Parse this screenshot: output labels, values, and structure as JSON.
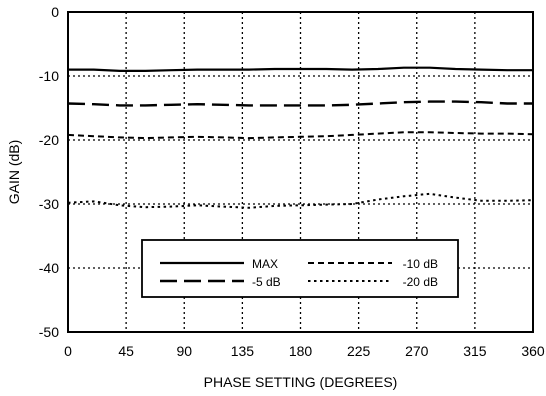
{
  "chart_data": {
    "type": "line",
    "xlabel": "PHASE SETTING (DEGREES)",
    "ylabel": "GAIN (dB)",
    "xlim": [
      0,
      360
    ],
    "ylim": [
      -50,
      0
    ],
    "xticks": [
      0,
      45,
      90,
      135,
      180,
      225,
      270,
      315,
      360
    ],
    "yticks": [
      0,
      -10,
      -20,
      -30,
      -40,
      -50
    ],
    "xtick_labels": [
      "0",
      "45",
      "90",
      "135",
      "180",
      "225",
      "270",
      "315",
      "360"
    ],
    "ytick_labels": [
      "0",
      "-10",
      "-20",
      "-30",
      "-40",
      "-50"
    ],
    "grid": "dotted",
    "legend_position": "lower-center",
    "series": [
      {
        "name": "MAX",
        "style": "solid",
        "x": [
          0,
          20,
          40,
          60,
          80,
          100,
          120,
          140,
          160,
          180,
          200,
          220,
          240,
          260,
          280,
          300,
          320,
          340,
          360
        ],
        "y": [
          -9.0,
          -9.0,
          -9.2,
          -9.2,
          -9.1,
          -9.0,
          -9.0,
          -9.0,
          -8.9,
          -8.9,
          -8.9,
          -9.0,
          -8.9,
          -8.7,
          -8.7,
          -8.9,
          -9.0,
          -9.1,
          -9.1
        ]
      },
      {
        "name": "-5 dB",
        "style": "long-dash",
        "x": [
          0,
          20,
          40,
          60,
          80,
          100,
          120,
          140,
          160,
          180,
          200,
          220,
          240,
          260,
          280,
          300,
          320,
          340,
          360
        ],
        "y": [
          -14.3,
          -14.4,
          -14.6,
          -14.6,
          -14.5,
          -14.4,
          -14.5,
          -14.6,
          -14.6,
          -14.6,
          -14.6,
          -14.5,
          -14.3,
          -14.1,
          -14.0,
          -14.0,
          -14.1,
          -14.3,
          -14.3
        ]
      },
      {
        "name": "-10 dB",
        "style": "short-dash",
        "x": [
          0,
          20,
          40,
          60,
          80,
          100,
          120,
          140,
          160,
          180,
          200,
          220,
          240,
          260,
          280,
          300,
          320,
          340,
          360
        ],
        "y": [
          -19.2,
          -19.4,
          -19.6,
          -19.7,
          -19.6,
          -19.5,
          -19.6,
          -19.7,
          -19.6,
          -19.5,
          -19.4,
          -19.2,
          -19.0,
          -18.8,
          -18.8,
          -18.9,
          -19.0,
          -19.0,
          -19.1
        ]
      },
      {
        "name": "-20 dB",
        "style": "dotted",
        "x": [
          0,
          20,
          40,
          60,
          80,
          100,
          120,
          140,
          160,
          180,
          200,
          220,
          240,
          260,
          280,
          300,
          320,
          340,
          360
        ],
        "y": [
          -29.8,
          -29.6,
          -30.2,
          -30.5,
          -30.4,
          -30.2,
          -30.4,
          -30.6,
          -30.3,
          -30.2,
          -30.1,
          -30.0,
          -29.3,
          -28.8,
          -28.4,
          -29.0,
          -29.5,
          -29.5,
          -29.4
        ]
      }
    ]
  }
}
